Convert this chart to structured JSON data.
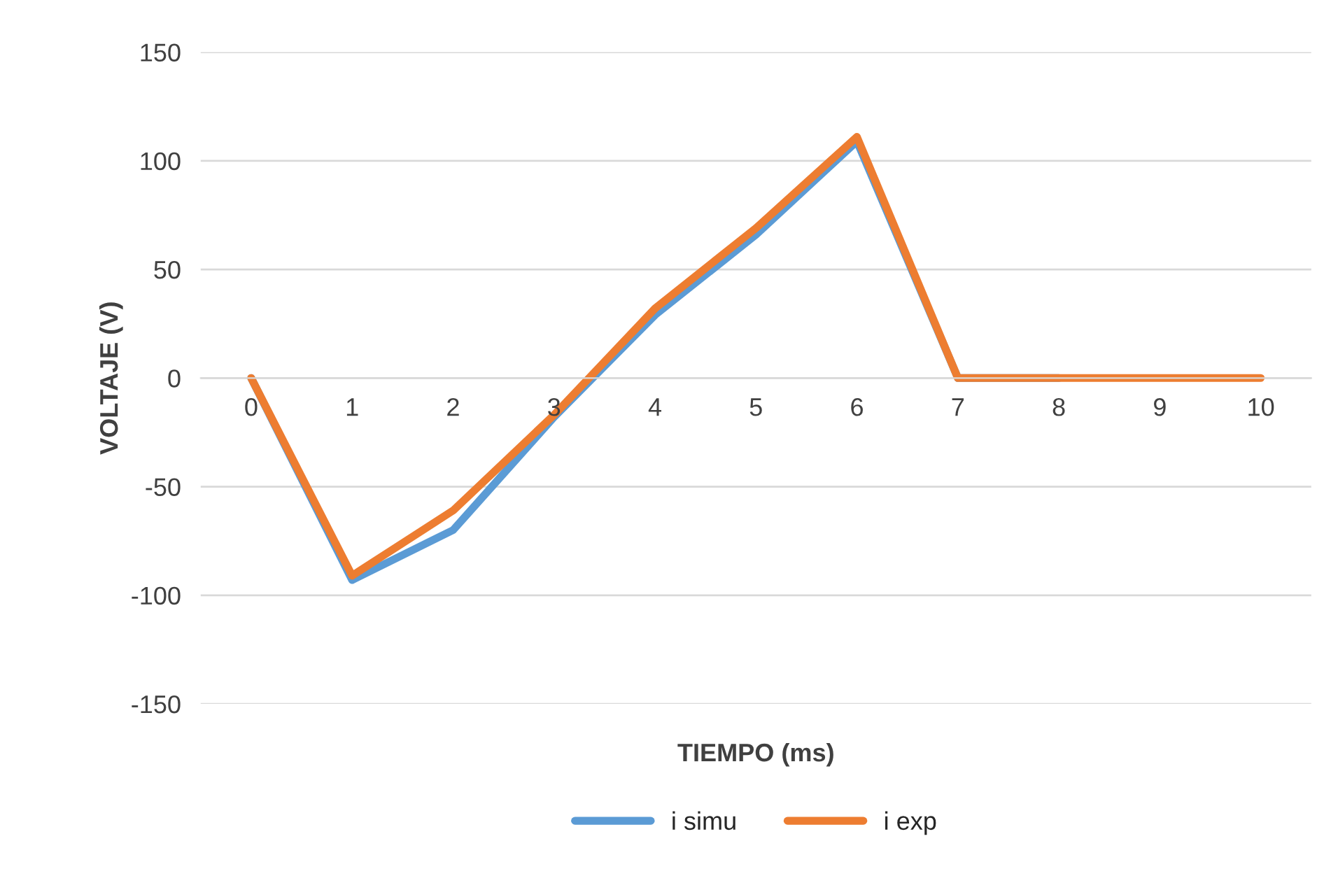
{
  "chart_data": {
    "type": "line",
    "xlabel": "TIEMPO (ms)",
    "ylabel": "VOLTAJE (V)",
    "categories": [
      "0",
      "1",
      "2",
      "3",
      "4",
      "5",
      "6",
      "7",
      "8",
      "9",
      "10"
    ],
    "series": [
      {
        "name": "i simu",
        "color": "#5b9bd5",
        "values": [
          0,
          -93,
          -70,
          -18,
          29,
          66,
          109,
          0,
          0,
          null,
          null
        ]
      },
      {
        "name": "i exp",
        "color": "#ed7d31",
        "values": [
          0,
          -91,
          -61,
          -17,
          32,
          69,
          111,
          0,
          0,
          0,
          0
        ]
      }
    ],
    "ylim": [
      -150,
      150
    ],
    "yticks": [
      -150,
      -100,
      -50,
      0,
      50,
      100,
      150
    ],
    "grid": "y",
    "legend": "bottom",
    "marker": "none",
    "line_style": "solid"
  }
}
